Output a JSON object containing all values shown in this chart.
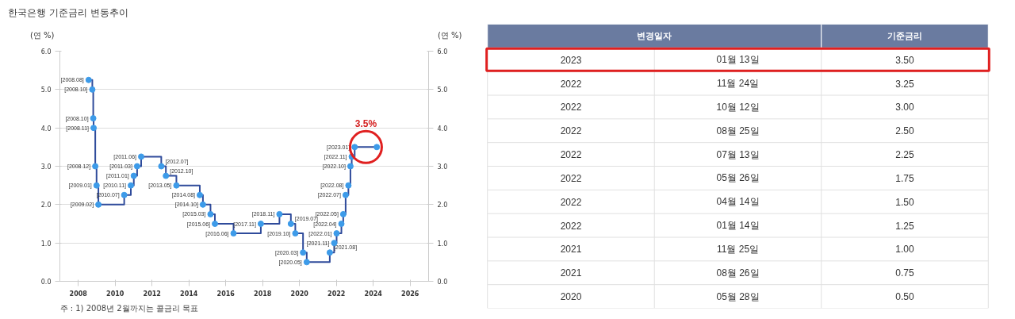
{
  "chart_data": [
    {
      "type": "step",
      "title": "한국은행 기준금리 변동추이",
      "ylabel": "(연 %)",
      "y2label": "(연 %)",
      "x": [
        2008.56,
        2008.76,
        2008.81,
        2008.83,
        2008.92,
        2008.99,
        2009.09,
        2010.49,
        2010.85,
        2011.01,
        2011.19,
        2011.41,
        2012.5,
        2012.75,
        2013.32,
        2014.59,
        2014.76,
        2015.17,
        2015.41,
        2016.42,
        2017.9,
        2018.91,
        2019.53,
        2019.77,
        2020.19,
        2020.39,
        2021.64,
        2021.88,
        2022.01,
        2022.27,
        2022.37,
        2022.5,
        2022.65,
        2022.76,
        2022.83,
        2022.99,
        2024.19
      ],
      "series": [
        {
          "color": "#2f4b9b",
          "values": [
            5.25,
            5.0,
            4.25,
            4.0,
            3.0,
            2.5,
            2.0,
            2.25,
            2.5,
            2.75,
            3.0,
            3.25,
            3.0,
            2.75,
            2.5,
            2.25,
            2.0,
            1.75,
            1.5,
            1.25,
            1.5,
            1.75,
            1.5,
            1.25,
            0.75,
            0.5,
            0.75,
            1.0,
            1.25,
            1.5,
            1.75,
            2.25,
            2.5,
            3.0,
            3.25,
            3.5,
            3.5
          ]
        }
      ],
      "marker": "circle",
      "line_style": "solid",
      "grid": "y",
      "xlim": [
        2007,
        2027
      ],
      "xticks": [
        2008,
        2010,
        2012,
        2014,
        2016,
        2018,
        2020,
        2022,
        2024,
        2026
      ],
      "ylim": [
        0,
        6
      ],
      "yticks": [
        {
          "value": 0,
          "label": "0.0"
        },
        {
          "value": 1,
          "label": "1.0"
        },
        {
          "value": 2,
          "label": "2.0"
        },
        {
          "value": 3,
          "label": "3.0"
        },
        {
          "value": 4,
          "label": "4.0"
        },
        {
          "value": 5,
          "label": "5.0"
        },
        {
          "value": 6,
          "label": "6.0"
        }
      ],
      "y2lim": [
        0,
        6
      ],
      "y2ticks": [
        {
          "value": 0,
          "label": "0.0"
        },
        {
          "value": 1,
          "label": "1.0"
        },
        {
          "value": 2,
          "label": "2.0"
        },
        {
          "value": 3,
          "label": "3.0"
        },
        {
          "value": 4,
          "label": "4.0"
        },
        {
          "value": 5,
          "label": "5.0"
        },
        {
          "value": 6,
          "label": "6.0"
        }
      ],
      "annotations": [
        {
          "text": "[2008.08]",
          "x": 2008.56,
          "y": 5.25
        },
        {
          "text": "[2008.10]",
          "x": 2008.76,
          "y": 5.0
        },
        {
          "text": "[2008.10]",
          "x": 2008.81,
          "y": 4.25
        },
        {
          "text": "[2008.11]",
          "x": 2008.83,
          "y": 4.0
        },
        {
          "text": "[2008.12]",
          "x": 2008.92,
          "y": 3.0
        },
        {
          "text": "[2009.01]",
          "x": 2008.99,
          "y": 2.5
        },
        {
          "text": "[2009.02]",
          "x": 2009.09,
          "y": 2.0
        },
        {
          "text": "[2010.07]",
          "x": 2010.49,
          "y": 2.25
        },
        {
          "text": "[2010.11]",
          "x": 2010.85,
          "y": 2.5
        },
        {
          "text": "[2011.01]",
          "x": 2011.01,
          "y": 2.75
        },
        {
          "text": "[2011.03]",
          "x": 2011.19,
          "y": 3.0
        },
        {
          "text": "[2011.06]",
          "x": 2011.41,
          "y": 3.25
        },
        {
          "text": "[2012.07]",
          "x": 2012.5,
          "y": 3.0
        },
        {
          "text": "[2012.10]",
          "x": 2012.75,
          "y": 2.75
        },
        {
          "text": "[2013.05]",
          "x": 2013.32,
          "y": 2.5
        },
        {
          "text": "[2014.08]",
          "x": 2014.59,
          "y": 2.25
        },
        {
          "text": "[2014.10]",
          "x": 2014.76,
          "y": 2.0
        },
        {
          "text": "[2015.03]",
          "x": 2015.17,
          "y": 1.75
        },
        {
          "text": "[2015.06]",
          "x": 2015.41,
          "y": 1.5
        },
        {
          "text": "[2016.06]",
          "x": 2016.42,
          "y": 1.25
        },
        {
          "text": "[2017.11]",
          "x": 2017.9,
          "y": 1.5
        },
        {
          "text": "[2018.11]",
          "x": 2018.91,
          "y": 1.75
        },
        {
          "text": "[2019.07]",
          "x": 2019.53,
          "y": 1.5
        },
        {
          "text": "[2019.10]",
          "x": 2019.77,
          "y": 1.25
        },
        {
          "text": "[2020.03]",
          "x": 2020.19,
          "y": 0.75
        },
        {
          "text": "[2020.05]",
          "x": 2020.39,
          "y": 0.5
        },
        {
          "text": "[2021.08]",
          "x": 2021.64,
          "y": 0.75
        },
        {
          "text": "[2021.11]",
          "x": 2021.88,
          "y": 1.0
        },
        {
          "text": "[2022.01]",
          "x": 2022.01,
          "y": 1.25
        },
        {
          "text": "[2022.04]",
          "x": 2022.27,
          "y": 1.5
        },
        {
          "text": "[2022.05]",
          "x": 2022.37,
          "y": 1.75
        },
        {
          "text": "[2022.07]",
          "x": 2022.5,
          "y": 2.25
        },
        {
          "text": "[2022.08]",
          "x": 2022.65,
          "y": 2.5
        },
        {
          "text": "[2022.10]",
          "x": 2022.76,
          "y": 3.0
        },
        {
          "text": "[2022.11]",
          "x": 2022.83,
          "y": 3.25
        },
        {
          "text": "[2023.01]",
          "x": 2022.99,
          "y": 3.5
        },
        {
          "text": "3.5%",
          "x": 2023.6,
          "y": 3.5
        },
        "주 : 1) 2008년 2월까지는 콜금리 목표"
      ]
    },
    {
      "type": "other",
      "annotations": [
        "변경일자",
        "기준금리",
        "2023",
        "01월 13일",
        "3.50",
        "2022",
        "11월 24일",
        "3.25",
        "2022",
        "10월 12일",
        "3.00",
        "2022",
        "08월 25일",
        "2.50",
        "2022",
        "07월 13일",
        "2.25",
        "2022",
        "05월 26일",
        "1.75",
        "2022",
        "04월 14일",
        "1.50",
        "2022",
        "01월 14일",
        "1.25",
        "2021",
        "11월 25일",
        "1.00",
        "2021",
        "08월 26일",
        "0.75",
        "2020",
        "05월 28일",
        "0.50"
      ]
    }
  ]
}
